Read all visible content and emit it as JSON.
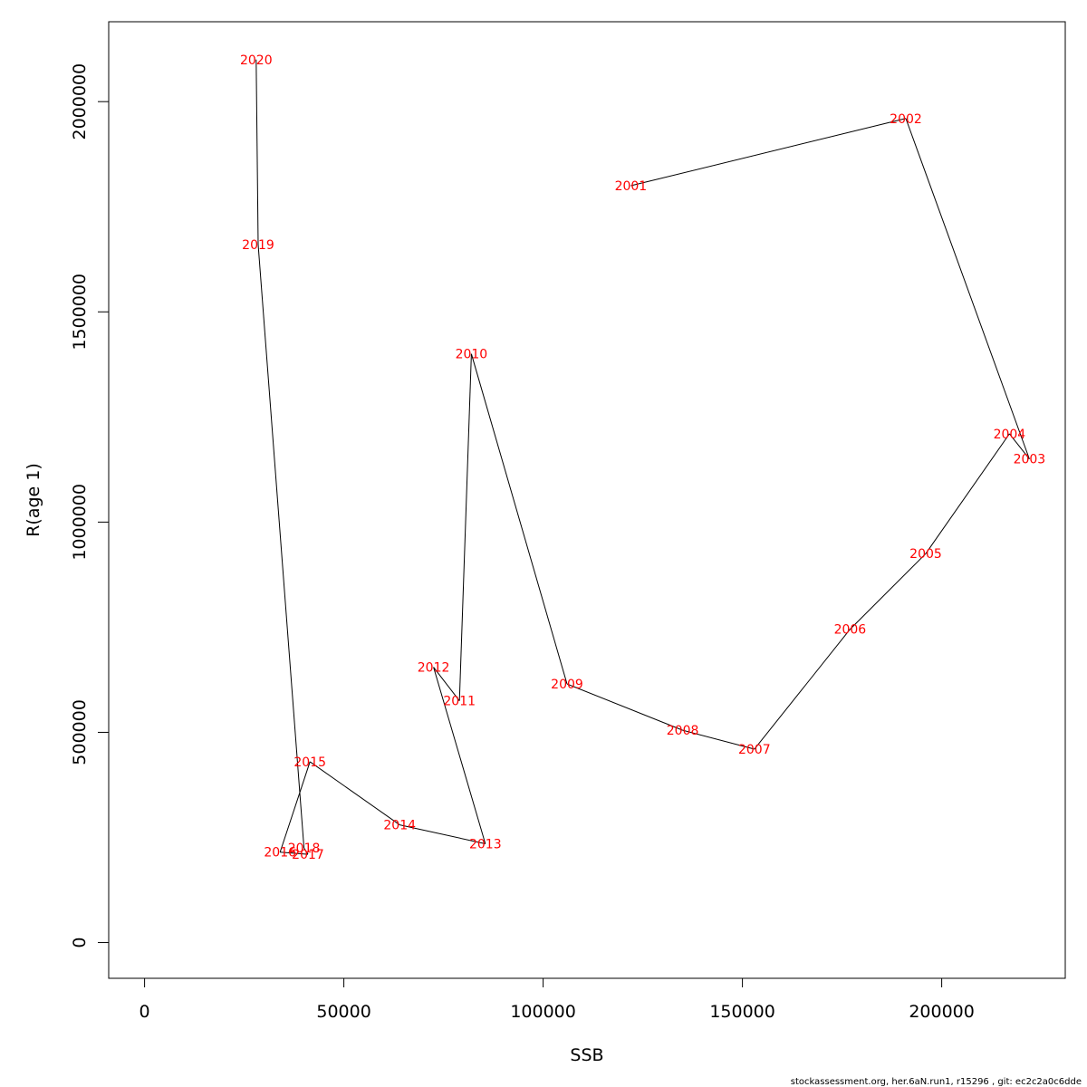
{
  "chart_data": {
    "type": "line",
    "xlabel": "SSB",
    "ylabel": "R(age 1)",
    "xlim": [
      -9000,
      231000
    ],
    "ylim": [
      -85000,
      2190000
    ],
    "x_ticks": [
      0,
      50000,
      100000,
      150000,
      200000
    ],
    "x_tick_labels": [
      "0",
      "50000",
      "100000",
      "150000",
      "200000"
    ],
    "y_ticks": [
      0,
      500000,
      1000000,
      1500000,
      2000000
    ],
    "y_tick_labels": [
      "0",
      "500000",
      "1000000",
      "1500000",
      "2000000"
    ],
    "grid": false,
    "line_color": "#000000",
    "label_color": "#ff0000",
    "points": [
      {
        "label": "2001",
        "x": 122000,
        "y": 1800000
      },
      {
        "label": "2002",
        "x": 191000,
        "y": 1960000
      },
      {
        "label": "2003",
        "x": 222000,
        "y": 1150000
      },
      {
        "label": "2004",
        "x": 217000,
        "y": 1210000
      },
      {
        "label": "2005",
        "x": 196000,
        "y": 925000
      },
      {
        "label": "2006",
        "x": 177000,
        "y": 745000
      },
      {
        "label": "2007",
        "x": 153000,
        "y": 460000
      },
      {
        "label": "2008",
        "x": 135000,
        "y": 505000
      },
      {
        "label": "2009",
        "x": 106000,
        "y": 615000
      },
      {
        "label": "2010",
        "x": 82000,
        "y": 1400000
      },
      {
        "label": "2011",
        "x": 79000,
        "y": 575000
      },
      {
        "label": "2012",
        "x": 72500,
        "y": 655000
      },
      {
        "label": "2013",
        "x": 85500,
        "y": 235000
      },
      {
        "label": "2014",
        "x": 64000,
        "y": 280000
      },
      {
        "label": "2015",
        "x": 41500,
        "y": 430000
      },
      {
        "label": "2016",
        "x": 34000,
        "y": 215000
      },
      {
        "label": "2017",
        "x": 41000,
        "y": 210000
      },
      {
        "label": "2018",
        "x": 40000,
        "y": 225000
      },
      {
        "label": "2019",
        "x": 28500,
        "y": 1660000
      },
      {
        "label": "2020",
        "x": 28000,
        "y": 2100000
      }
    ]
  },
  "footer": {
    "text": "stockassessment.org, her.6aN.run1, r15296 , git: ec2c2a0c6dde"
  }
}
